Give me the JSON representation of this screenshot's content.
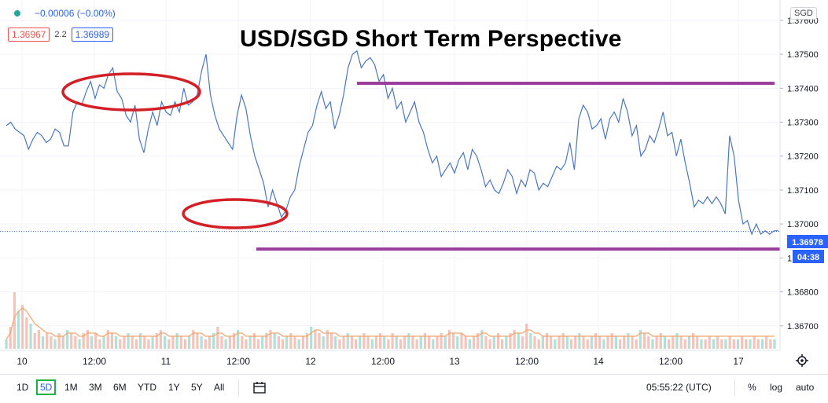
{
  "header": {
    "change_text": "−0.00006 (−0.00%)",
    "bid": "1.36967",
    "spread": "2.2",
    "ask": "1.36989",
    "currency_badge": "SGD",
    "title": "USD/SGD Short Term Perspective"
  },
  "bottom_bar": {
    "ranges": [
      "1D",
      "5D",
      "1M",
      "3M",
      "6M",
      "YTD",
      "1Y",
      "5Y",
      "All"
    ],
    "active_range": "5D",
    "time": "05:55:22 (UTC)",
    "percent": "%",
    "log": "log",
    "auto": "auto"
  },
  "colors": {
    "line": "#4a76c4",
    "annotation_ellipse": "#d31f26",
    "annotation_line": "#9b3f9e",
    "volume_up": "#8fd3c4",
    "volume_down": "#f2a99d",
    "volume_ma": "#f4a66a",
    "price_badge": "#2962ff"
  },
  "chart_data": {
    "type": "line",
    "title": "USD/SGD Short Term Perspective",
    "ylim": [
      1.3663,
      1.3766
    ],
    "y_ticks": [
      "1.37600",
      "1.37500",
      "1.37400",
      "1.37300",
      "1.37200",
      "1.37100",
      "1.37000",
      "1.36900",
      "1.36800",
      "1.36700"
    ],
    "x_ticks": [
      "10",
      "12:00",
      "11",
      "12:00",
      "12",
      "12:00",
      "13",
      "12:00",
      "14",
      "12:00",
      "17"
    ],
    "current_price": "1.36978",
    "countdown": "04:38",
    "series": [
      {
        "values": [
          1.3729,
          1.373,
          1.3728,
          1.3727,
          1.3726,
          1.3722,
          1.3725,
          1.3727,
          1.3726,
          1.3724,
          1.3725,
          1.3728,
          1.3727,
          1.3723,
          1.3723,
          1.3733,
          1.3736,
          1.3735,
          1.3739,
          1.3742,
          1.3737,
          1.3741,
          1.374,
          1.3744,
          1.3746,
          1.3739,
          1.3737,
          1.3732,
          1.373,
          1.3735,
          1.3725,
          1.3721,
          1.3728,
          1.3733,
          1.3729,
          1.3736,
          1.3733,
          1.3732,
          1.3736,
          1.3733,
          1.374,
          1.3735,
          1.3736,
          1.3738,
          1.3745,
          1.375,
          1.3738,
          1.3732,
          1.3728,
          1.3726,
          1.3724,
          1.3722,
          1.3732,
          1.3738,
          1.3734,
          1.3726,
          1.372,
          1.3716,
          1.3712,
          1.3705,
          1.371,
          1.3706,
          1.3702,
          1.3704,
          1.3708,
          1.371,
          1.3717,
          1.3722,
          1.3727,
          1.3729,
          1.3735,
          1.3739,
          1.3734,
          1.3736,
          1.3728,
          1.3732,
          1.3738,
          1.3746,
          1.375,
          1.3751,
          1.3746,
          1.3748,
          1.3749,
          1.3747,
          1.3742,
          1.3744,
          1.3737,
          1.374,
          1.3734,
          1.3736,
          1.373,
          1.3733,
          1.3736,
          1.373,
          1.3727,
          1.3722,
          1.3718,
          1.372,
          1.3714,
          1.3716,
          1.3718,
          1.3715,
          1.3719,
          1.3721,
          1.3716,
          1.3722,
          1.372,
          1.3716,
          1.3711,
          1.3713,
          1.371,
          1.3709,
          1.3712,
          1.3716,
          1.3714,
          1.3709,
          1.3713,
          1.3711,
          1.3716,
          1.3715,
          1.371,
          1.3712,
          1.3711,
          1.3714,
          1.3717,
          1.3716,
          1.3718,
          1.3724,
          1.3716,
          1.3731,
          1.3735,
          1.3733,
          1.3728,
          1.3729,
          1.3731,
          1.3725,
          1.3731,
          1.3733,
          1.373,
          1.3737,
          1.3733,
          1.3726,
          1.3729,
          1.372,
          1.3722,
          1.3726,
          1.3724,
          1.3728,
          1.3733,
          1.3726,
          1.3727,
          1.372,
          1.3725,
          1.3718,
          1.3712,
          1.3705,
          1.3707,
          1.3706,
          1.3708,
          1.3706,
          1.3708,
          1.3706,
          1.3703,
          1.3726,
          1.372,
          1.3707,
          1.37,
          1.3701,
          1.3697,
          1.37,
          1.3697,
          1.3698,
          1.3697,
          1.3698,
          1.3698
        ]
      }
    ],
    "volume": {
      "values": [
        3,
        7,
        18,
        12,
        14,
        10,
        8,
        5,
        6,
        4,
        5,
        4,
        3,
        5,
        4,
        6,
        5,
        4,
        3,
        5,
        6,
        4,
        5,
        3,
        4,
        6,
        5,
        4,
        3,
        4,
        5,
        4,
        3,
        5,
        4,
        3,
        4,
        5,
        6,
        4,
        3,
        4,
        5,
        4,
        3,
        4,
        6,
        5,
        4,
        3,
        4,
        5,
        7,
        4,
        3,
        4,
        5,
        6,
        4,
        3,
        4,
        5,
        3,
        4,
        5,
        6,
        5,
        4,
        3,
        4,
        5,
        4,
        3,
        4,
        5,
        7,
        6,
        5,
        4,
        6,
        5,
        4,
        3,
        4,
        5,
        4,
        3,
        4,
        5,
        4,
        3,
        4,
        5,
        4,
        3,
        5,
        4,
        3,
        4,
        5,
        4,
        3,
        4,
        5,
        4,
        3,
        4,
        5,
        4,
        6,
        5,
        4,
        5,
        4,
        3,
        4,
        5,
        6,
        4,
        3,
        4,
        5,
        3,
        4,
        5,
        6,
        5,
        4,
        8,
        5,
        4,
        3,
        4,
        5,
        4,
        3,
        4,
        5,
        4,
        3,
        4,
        5,
        4,
        3,
        4,
        5,
        4,
        3,
        4,
        5,
        4,
        3,
        4,
        5,
        4,
        3,
        6,
        5,
        4,
        3,
        4,
        5,
        4,
        3,
        4,
        5,
        4,
        3,
        4,
        5,
        4,
        3,
        3,
        4,
        3,
        4,
        3,
        3,
        4,
        3,
        3,
        4,
        3,
        3,
        4,
        3,
        3,
        4,
        3,
        3
      ],
      "moving_average": [
        3,
        5,
        10,
        12,
        13,
        12,
        10,
        8,
        7,
        6,
        5,
        5,
        4,
        4,
        4,
        5,
        5,
        5,
        4,
        4,
        5,
        5,
        5,
        4,
        4,
        5,
        5,
        5,
        4,
        4,
        4,
        4,
        4,
        4,
        4,
        4,
        4,
        4,
        5,
        5,
        4,
        4,
        4,
        4,
        4,
        4,
        5,
        5,
        5,
        4,
        4,
        4,
        5,
        5,
        4,
        4,
        4,
        5,
        5,
        4,
        4,
        4,
        4,
        4,
        4,
        5,
        5,
        5,
        4,
        4,
        4,
        4,
        4,
        4,
        4,
        5,
        6,
        6,
        5,
        5,
        5,
        5,
        4,
        4,
        4,
        4,
        4,
        4,
        4,
        4,
        4,
        4,
        4,
        4,
        4,
        4,
        4,
        4,
        4,
        4,
        4,
        4,
        4,
        4,
        4,
        4,
        4,
        4,
        4,
        5,
        5,
        5,
        5,
        4,
        4,
        4,
        4,
        5,
        5,
        4,
        4,
        4,
        4,
        4,
        4,
        5,
        5,
        5,
        6,
        6,
        5,
        5,
        4,
        4,
        4,
        4,
        4,
        4,
        4,
        4,
        4,
        4,
        4,
        4,
        4,
        4,
        4,
        4,
        4,
        4,
        4,
        4,
        4,
        4,
        4,
        4,
        5,
        5,
        5,
        4,
        4,
        4,
        4,
        4,
        4,
        4,
        4,
        4,
        4,
        4,
        4,
        4,
        4,
        4,
        4,
        4,
        4,
        4,
        4,
        4,
        4,
        4,
        4,
        4,
        4,
        4,
        4,
        4,
        4,
        4
      ]
    }
  }
}
